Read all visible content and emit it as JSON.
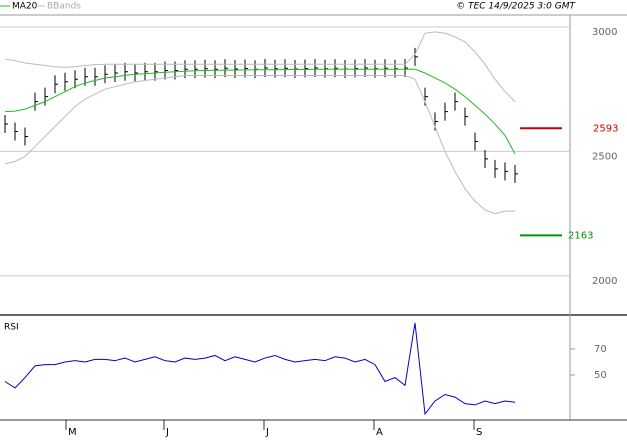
{
  "chart_data": {
    "type": "ohlc",
    "header": {
      "ma_label": "MA20",
      "bb_label": "BBands",
      "source": "© TEC 14/9/2025 3:0 GMT"
    },
    "xlim": [
      -0.5,
      56.5
    ],
    "xticks": [
      {
        "value": 6.1,
        "label": "M"
      },
      {
        "value": 15.9,
        "label": "J"
      },
      {
        "value": 25.9,
        "label": "J"
      },
      {
        "value": 36.9,
        "label": "A"
      },
      {
        "value": 46.9,
        "label": "S"
      }
    ],
    "ylim": [
      1843,
      3048
    ],
    "yticks": [
      2000,
      2500,
      3000
    ],
    "series": [
      {
        "name": "Close",
        "color": "#000000",
        "values": [
          2610,
          2580,
          2560,
          2700,
          2720,
          2770,
          2780,
          2790,
          2800,
          2800,
          2810,
          2815,
          2820,
          2815,
          2820,
          2820,
          2825,
          2825,
          2830,
          2830,
          2832,
          2830,
          2834,
          2831,
          2833,
          2830,
          2835,
          2832,
          2834,
          2831,
          2833,
          2835,
          2832,
          2834,
          2831,
          2833,
          2835,
          2832,
          2834,
          2832,
          2835,
          2880,
          2720,
          2620,
          2660,
          2700,
          2640,
          2540,
          2470,
          2430,
          2420,
          2410
        ]
      },
      {
        "name": "MA20",
        "color": "#22bb22",
        "values": [
          2660,
          2662,
          2670,
          2685,
          2700,
          2720,
          2740,
          2760,
          2775,
          2785,
          2795,
          2800,
          2805,
          2810,
          2812,
          2815,
          2818,
          2820,
          2822,
          2824,
          2825,
          2826,
          2826,
          2827,
          2827,
          2828,
          2828,
          2828,
          2829,
          2829,
          2829,
          2830,
          2830,
          2830,
          2830,
          2830,
          2830,
          2830,
          2830,
          2830,
          2830,
          2830,
          2815,
          2795,
          2775,
          2750,
          2720,
          2685,
          2650,
          2610,
          2565,
          2490
        ]
      },
      {
        "name": "BB upper",
        "color": "#bbbbbb",
        "values": [
          2870,
          2865,
          2855,
          2850,
          2845,
          2840,
          2838,
          2840,
          2845,
          2848,
          2850,
          2850,
          2850,
          2850,
          2850,
          2850,
          2850,
          2850,
          2850,
          2850,
          2850,
          2850,
          2850,
          2850,
          2850,
          2850,
          2850,
          2850,
          2850,
          2850,
          2850,
          2850,
          2850,
          2850,
          2850,
          2850,
          2850,
          2850,
          2850,
          2850,
          2850,
          2890,
          2975,
          2980,
          2975,
          2960,
          2940,
          2900,
          2850,
          2790,
          2740,
          2700
        ]
      },
      {
        "name": "BB lower",
        "color": "#bbbbbb",
        "values": [
          2450,
          2460,
          2480,
          2520,
          2560,
          2600,
          2640,
          2680,
          2710,
          2730,
          2750,
          2760,
          2770,
          2780,
          2785,
          2790,
          2795,
          2800,
          2805,
          2805,
          2805,
          2805,
          2805,
          2805,
          2805,
          2805,
          2805,
          2805,
          2805,
          2805,
          2805,
          2805,
          2805,
          2805,
          2805,
          2805,
          2805,
          2805,
          2805,
          2805,
          2805,
          2790,
          2700,
          2600,
          2500,
          2420,
          2350,
          2300,
          2265,
          2250,
          2260,
          2260
        ]
      }
    ],
    "levels": [
      {
        "value": 2593,
        "color": "#cc0000"
      },
      {
        "value": 2163,
        "color": "#009900"
      }
    ],
    "rsi": {
      "title": "RSI",
      "color": "#0000cc",
      "ylim": [
        15.4,
        93.8
      ],
      "yticks": [
        50,
        70
      ],
      "values": [
        45,
        40,
        48,
        57,
        58,
        58,
        60,
        61,
        60,
        62,
        62,
        61,
        63,
        60,
        62,
        64,
        61,
        60,
        63,
        62,
        63,
        65,
        61,
        64,
        62,
        60,
        63,
        65,
        62,
        60,
        61,
        62,
        61,
        64,
        63,
        60,
        62,
        58,
        45,
        48,
        42,
        90,
        20,
        30,
        35,
        33,
        28,
        27,
        30,
        28,
        30,
        29
      ]
    }
  }
}
